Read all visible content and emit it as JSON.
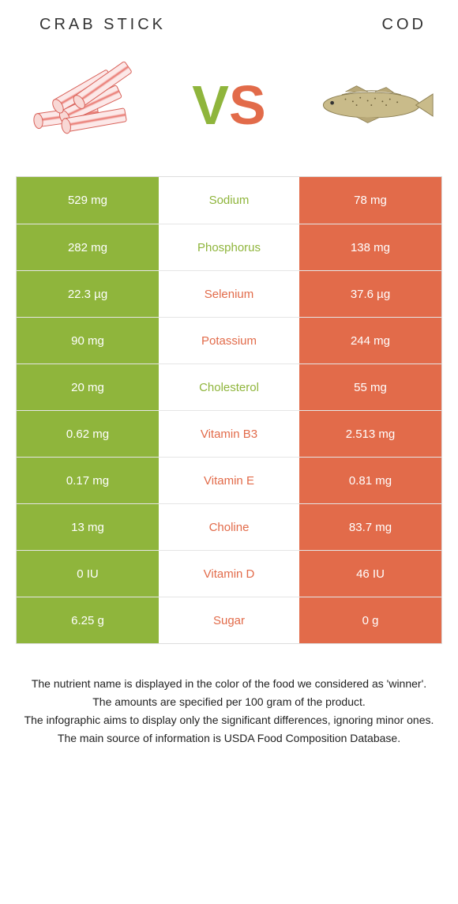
{
  "header": {
    "left_title": "CRAB STICK",
    "right_title": "COD",
    "vs_v": "V",
    "vs_s": "S",
    "left_color": "#8fb53c",
    "right_color": "#e26b4a"
  },
  "table": {
    "left_bg": "#8fb53c",
    "right_bg": "#e26b4a",
    "left_text_color": "#ffffff",
    "right_text_color": "#ffffff",
    "rows": [
      {
        "nutrient": "Sodium",
        "left": "529 mg",
        "right": "78 mg",
        "winner": "left"
      },
      {
        "nutrient": "Phosphorus",
        "left": "282 mg",
        "right": "138 mg",
        "winner": "left"
      },
      {
        "nutrient": "Selenium",
        "left": "22.3 µg",
        "right": "37.6 µg",
        "winner": "right"
      },
      {
        "nutrient": "Potassium",
        "left": "90 mg",
        "right": "244 mg",
        "winner": "right"
      },
      {
        "nutrient": "Cholesterol",
        "left": "20 mg",
        "right": "55 mg",
        "winner": "left"
      },
      {
        "nutrient": "Vitamin B3",
        "left": "0.62 mg",
        "right": "2.513 mg",
        "winner": "right"
      },
      {
        "nutrient": "Vitamin E",
        "left": "0.17 mg",
        "right": "0.81 mg",
        "winner": "right"
      },
      {
        "nutrient": "Choline",
        "left": "13 mg",
        "right": "83.7 mg",
        "winner": "right"
      },
      {
        "nutrient": "Vitamin D",
        "left": "0 IU",
        "right": "46 IU",
        "winner": "right"
      },
      {
        "nutrient": "Sugar",
        "left": "6.25 g",
        "right": "0 g",
        "winner": "right"
      }
    ]
  },
  "footnotes": [
    "The nutrient name is displayed in the color of the food we considered as 'winner'.",
    "The amounts are specified per 100 gram of the product.",
    "The infographic aims to display only the significant differences, ignoring minor ones.",
    "The main source of information is USDA Food Composition Database."
  ]
}
